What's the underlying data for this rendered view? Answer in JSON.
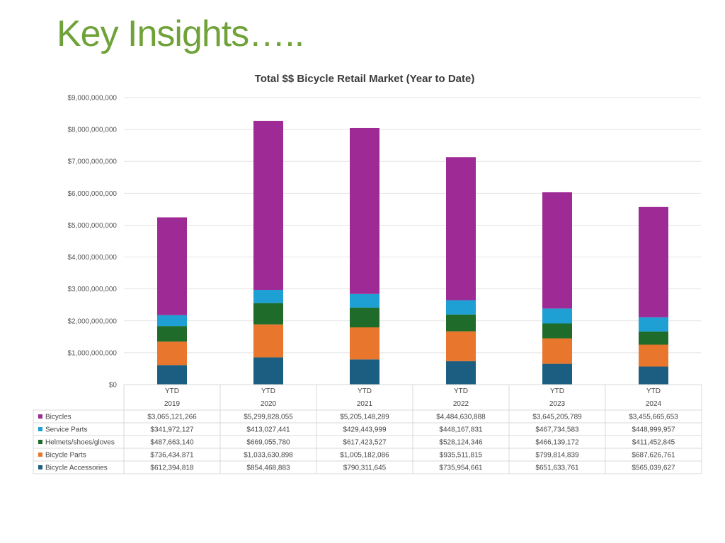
{
  "slide": {
    "title": "Key Insights….."
  },
  "chart_data": {
    "type": "bar",
    "stacked": true,
    "title": "Total $$ Bicycle Retail Market (Year to Date)",
    "categories": [
      {
        "top": "YTD",
        "bottom": "2019"
      },
      {
        "top": "YTD",
        "bottom": "2020"
      },
      {
        "top": "YTD",
        "bottom": "2021"
      },
      {
        "top": "YTD",
        "bottom": "2022"
      },
      {
        "top": "YTD",
        "bottom": "2023"
      },
      {
        "top": "YTD",
        "bottom": "2024"
      }
    ],
    "ylim": [
      0,
      9000000000
    ],
    "yticks": [
      {
        "value": 0,
        "label": "$0"
      },
      {
        "value": 1000000000,
        "label": "$1,000,000,000"
      },
      {
        "value": 2000000000,
        "label": "$2,000,000,000"
      },
      {
        "value": 3000000000,
        "label": "$3,000,000,000"
      },
      {
        "value": 4000000000,
        "label": "$4,000,000,000"
      },
      {
        "value": 5000000000,
        "label": "$5,000,000,000"
      },
      {
        "value": 6000000000,
        "label": "$6,000,000,000"
      },
      {
        "value": 7000000000,
        "label": "$7,000,000,000"
      },
      {
        "value": 8000000000,
        "label": "$8,000,000,000"
      },
      {
        "value": 9000000000,
        "label": "$9,000,000,000"
      }
    ],
    "grid": true,
    "legend": "data-table",
    "series": [
      {
        "name": "Bicycles",
        "color": "#9e2a96",
        "values": [
          3065121266,
          5299828055,
          5205148289,
          4484630888,
          3645205789,
          3455665653
        ],
        "labels": [
          "$3,065,121,266",
          "$5,299,828,055",
          "$5,205,148,289",
          "$4,484,630,888",
          "$3,645,205,789",
          "$3,455,665,653"
        ]
      },
      {
        "name": "Service Parts",
        "color": "#1ea0d4",
        "values": [
          341972127,
          413027441,
          429443999,
          448167831,
          467734583,
          448999957
        ],
        "labels": [
          "$341,972,127",
          "$413,027,441",
          "$429,443,999",
          "$448,167,831",
          "$467,734,583",
          "$448,999,957"
        ]
      },
      {
        "name": "Helmets/shoes/gloves",
        "color": "#1e6b2a",
        "values": [
          487663140,
          669055780,
          617423527,
          528124346,
          466139172,
          411452845
        ],
        "labels": [
          "$487,663,140",
          "$669,055,780",
          "$617,423,527",
          "$528,124,346",
          "$466,139,172",
          "$411,452,845"
        ]
      },
      {
        "name": "Bicycle Parts",
        "color": "#e8762d",
        "values": [
          736434871,
          1033630898,
          1005182086,
          935511815,
          799814839,
          687626761
        ],
        "labels": [
          "$736,434,871",
          "$1,033,630,898",
          "$1,005,182,086",
          "$935,511,815",
          "$799,814,839",
          "$687,626,761"
        ]
      },
      {
        "name": "Bicycle Accessories",
        "color": "#1b5e82",
        "values": [
          612394818,
          854468883,
          790311645,
          735954661,
          651633761,
          565039627
        ],
        "labels": [
          "$612,394,818",
          "$854,468,883",
          "$790,311,645",
          "$735,954,661",
          "$651,633,761",
          "$565,039,627"
        ]
      }
    ]
  }
}
